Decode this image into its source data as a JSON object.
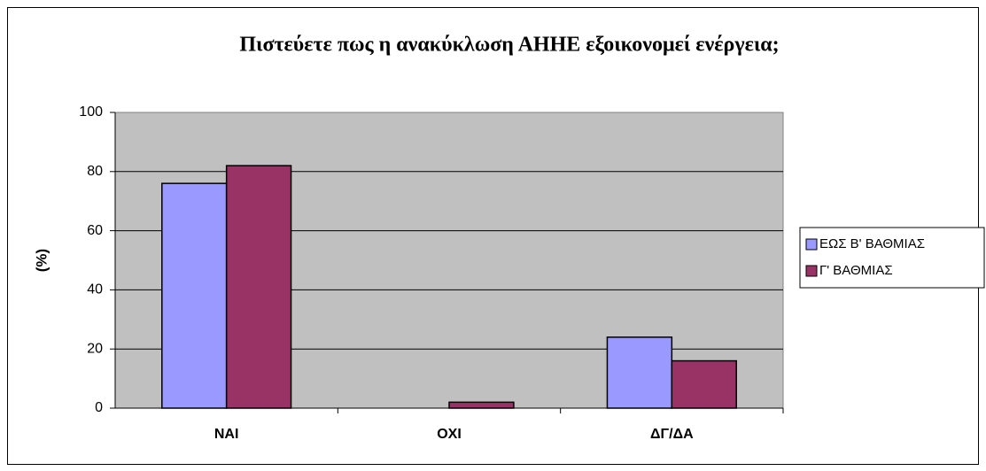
{
  "chart_data": {
    "type": "bar",
    "title": "Πιστεύετε πως η ανακύκλωση ΑΗΗΕ εξοικονομεί ενέργεια;",
    "ylabel": "(%)",
    "categories": [
      "NAI",
      "OXI",
      "ΔΓ/ΔΑ"
    ],
    "series": [
      {
        "name": "ΕΩΣ Β' ΒΑΘΜΙΑΣ",
        "color": "#9999ff",
        "values": [
          76,
          0,
          24
        ]
      },
      {
        "name": "Γ' ΒΑΘΜΙΑΣ",
        "color": "#993366",
        "values": [
          82,
          2,
          16
        ]
      }
    ],
    "ylim": [
      0,
      100
    ],
    "yticks": [
      0,
      20,
      40,
      60,
      80,
      100
    ],
    "grid": true,
    "legend": "right"
  }
}
